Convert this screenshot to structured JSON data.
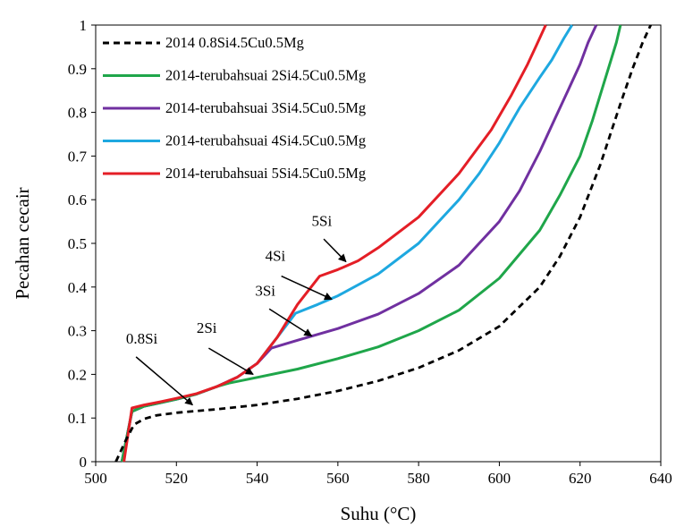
{
  "chart_data": {
    "type": "line",
    "title": "",
    "xlabel": "Suhu (°C)",
    "ylabel": "Pecahan cecair",
    "xlim": [
      500,
      640
    ],
    "ylim": [
      0,
      1
    ],
    "xticks": [
      500,
      520,
      540,
      560,
      580,
      600,
      620,
      640
    ],
    "yticks": [
      0,
      0.1,
      0.2,
      0.3,
      0.4,
      0.5,
      0.6,
      0.7,
      0.8,
      0.9,
      1
    ],
    "yticklabels": [
      "0",
      "0.1",
      "0.2",
      "0.3",
      "0.4",
      "0.5",
      "0.6",
      "0.7",
      "0.8",
      "0.9",
      "1"
    ],
    "grid": false,
    "legend_position": "top-left",
    "series": [
      {
        "name": "2014 0.8Si4.5Cu0.5Mg",
        "color": "#000000",
        "dash": "dashed",
        "x": [
          505.0,
          507.5,
          509.5,
          512,
          515,
          520,
          530,
          540,
          550,
          560,
          570,
          580,
          590,
          600,
          610,
          615,
          620,
          625,
          630,
          633,
          635.5,
          637.5
        ],
        "y": [
          0.0,
          0.05,
          0.085,
          0.098,
          0.106,
          0.112,
          0.12,
          0.13,
          0.144,
          0.162,
          0.185,
          0.215,
          0.255,
          0.31,
          0.4,
          0.47,
          0.56,
          0.68,
          0.82,
          0.9,
          0.96,
          1.0
        ]
      },
      {
        "name": "2014-terubahsuai 2Si4.5Cu0.5Mg",
        "color": "#1fa64a",
        "dash": "solid",
        "x": [
          506.5,
          509,
          512,
          516,
          520,
          525,
          530,
          533,
          540,
          550,
          560,
          570,
          580,
          590,
          600,
          610,
          615,
          620,
          623,
          625,
          627,
          629,
          630
        ],
        "y": [
          0.0,
          0.115,
          0.127,
          0.135,
          0.143,
          0.155,
          0.172,
          0.18,
          0.193,
          0.212,
          0.236,
          0.263,
          0.3,
          0.347,
          0.42,
          0.53,
          0.61,
          0.7,
          0.78,
          0.84,
          0.9,
          0.96,
          1.0
        ]
      },
      {
        "name": "2014-terubahsuai 3Si4.5Cu0.5Mg",
        "color": "#7030a0",
        "dash": "solid",
        "x": [
          506.5,
          509,
          512,
          516,
          520,
          525,
          530,
          535,
          540,
          543.5,
          550,
          560,
          570,
          580,
          590,
          600,
          605,
          610,
          614,
          617,
          620,
          622,
          624
        ],
        "y": [
          0.0,
          0.115,
          0.127,
          0.135,
          0.143,
          0.155,
          0.172,
          0.193,
          0.225,
          0.26,
          0.278,
          0.305,
          0.338,
          0.385,
          0.45,
          0.55,
          0.62,
          0.71,
          0.79,
          0.85,
          0.91,
          0.96,
          1.0
        ]
      },
      {
        "name": "2014-terubahsuai 4Si4.5Cu0.5Mg",
        "color": "#1ea8e0",
        "dash": "solid",
        "x": [
          506.5,
          509,
          512,
          516,
          520,
          525,
          530,
          535,
          540,
          545,
          549.5,
          555,
          560,
          570,
          580,
          590,
          595,
          600,
          605,
          610,
          613,
          616,
          618
        ],
        "y": [
          0.0,
          0.115,
          0.127,
          0.135,
          0.143,
          0.155,
          0.172,
          0.193,
          0.225,
          0.285,
          0.34,
          0.36,
          0.38,
          0.43,
          0.5,
          0.6,
          0.66,
          0.73,
          0.81,
          0.88,
          0.92,
          0.97,
          1.0
        ]
      },
      {
        "name": "2014-terubahsuai 5Si4.5Cu0.5Mg",
        "color": "#e41e26",
        "dash": "solid",
        "x": [
          507,
          509,
          512,
          516,
          520,
          525,
          530,
          535,
          540,
          545,
          550,
          555.5,
          560,
          565,
          570,
          580,
          590,
          598,
          603,
          607,
          609,
          610.5,
          611.5
        ],
        "y": [
          0.0,
          0.123,
          0.13,
          0.137,
          0.145,
          0.156,
          0.172,
          0.193,
          0.225,
          0.285,
          0.36,
          0.425,
          0.44,
          0.46,
          0.49,
          0.56,
          0.66,
          0.76,
          0.84,
          0.91,
          0.95,
          0.98,
          1.0
        ]
      }
    ],
    "annotations": [
      {
        "text": "0.8Si",
        "label_x": 507.5,
        "label_y": 0.27,
        "arrow_from": [
          510,
          0.24
        ],
        "arrow_to": [
          524,
          0.13
        ]
      },
      {
        "text": "2Si",
        "label_x": 525,
        "label_y": 0.295,
        "arrow_from": [
          528,
          0.26
        ],
        "arrow_to": [
          539,
          0.2
        ]
      },
      {
        "text": "3Si",
        "label_x": 539.5,
        "label_y": 0.38,
        "arrow_from": [
          543,
          0.35
        ],
        "arrow_to": [
          553.5,
          0.288
        ]
      },
      {
        "text": "4Si",
        "label_x": 542,
        "label_y": 0.46,
        "arrow_from": [
          546,
          0.425
        ],
        "arrow_to": [
          558.5,
          0.372
        ]
      },
      {
        "text": "5Si",
        "label_x": 553.5,
        "label_y": 0.54,
        "arrow_from": [
          556.5,
          0.51
        ],
        "arrow_to": [
          562,
          0.458
        ]
      }
    ]
  }
}
